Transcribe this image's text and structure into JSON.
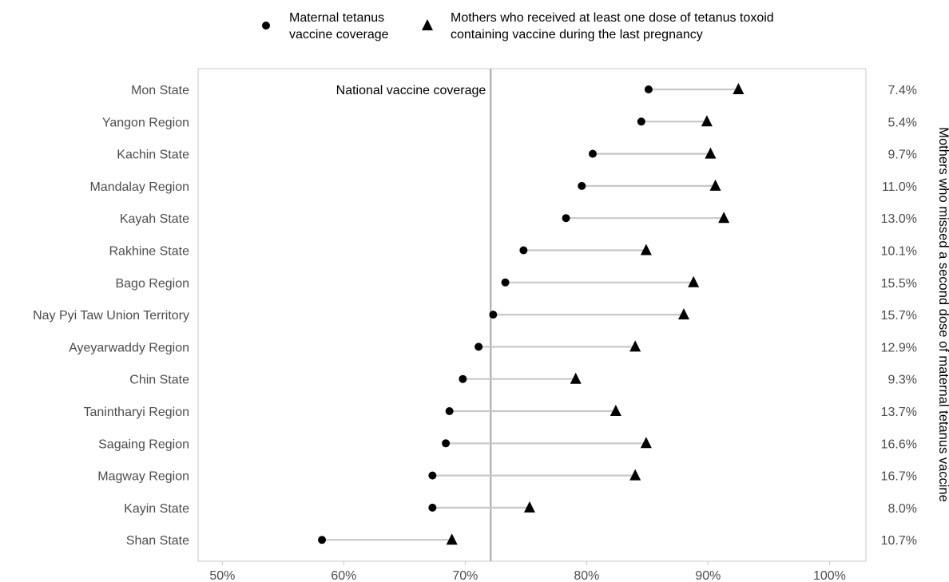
{
  "chart_data": {
    "type": "dumbbell",
    "series": [
      {
        "name": "Maternal tetanus vaccine coverage",
        "marker": "circle"
      },
      {
        "name": "Mothers who received at least one dose of tetanus toxoid containing vaccine during the last pregnancy",
        "marker": "triangle"
      }
    ],
    "legend": {
      "position": "top",
      "items": [
        {
          "lines": [
            "Maternal tetanus",
            "vaccine coverage"
          ],
          "marker": "circle"
        },
        {
          "lines": [
            "Mothers who received at least one dose of tetanus toxoid",
            "containing vaccine during the last pregnancy"
          ],
          "marker": "triangle"
        }
      ]
    },
    "categories": [
      "Mon State",
      "Yangon Region",
      "Kachin State",
      "Mandalay Region",
      "Kayah State",
      "Rakhine State",
      "Bago Region",
      "Nay Pyi Taw Union Territory",
      "Ayeyarwaddy Region",
      "Chin State",
      "Tanintharyi Region",
      "Sagaing Region",
      "Magway Region",
      "Kayin State",
      "Shan State"
    ],
    "coverage": [
      85.1,
      84.5,
      80.5,
      79.6,
      78.3,
      74.8,
      73.3,
      72.3,
      71.1,
      69.8,
      68.7,
      68.4,
      67.3,
      67.3,
      58.2
    ],
    "at_least_one_dose": [
      92.5,
      89.9,
      90.2,
      90.6,
      91.3,
      84.9,
      88.8,
      88.0,
      84.0,
      79.1,
      82.4,
      84.9,
      84.0,
      75.3,
      68.9
    ],
    "missed_second_dose": [
      "7.4%",
      "5.4%",
      "9.7%",
      "11.0%",
      "13.0%",
      "10.1%",
      "15.5%",
      "15.7%",
      "12.9%",
      "9.3%",
      "13.7%",
      "16.6%",
      "16.7%",
      "8.0%",
      "10.7%"
    ],
    "reference_line": {
      "value": 72.1,
      "label": "National vaccine coverage"
    },
    "xlim": [
      48,
      103
    ],
    "xticks": [
      50,
      60,
      70,
      80,
      90,
      100
    ],
    "xtick_labels": [
      "50%",
      "60%",
      "70%",
      "80%",
      "90%",
      "100%"
    ],
    "right_axis_title": "Mothers who missed a second dose of maternal tetanus vaccine",
    "grid": false,
    "colors": {
      "marker": "#000000",
      "segment": "#c8c8c8",
      "reference": "#a6a6a6",
      "frame": "#c8c8c8",
      "label": "#4d4d4d"
    }
  }
}
